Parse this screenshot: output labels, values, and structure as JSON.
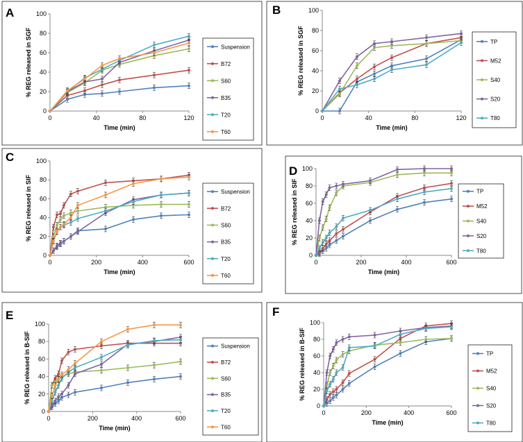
{
  "chart_data": [
    {
      "panel": "A",
      "type": "line",
      "ylabel": "% REG released in SGF",
      "xlabel": "Time (min)",
      "xlim": [
        0,
        120
      ],
      "xticks": [
        0,
        40,
        80,
        120
      ],
      "ylim": [
        0,
        100
      ],
      "yticks": [
        0,
        20,
        40,
        60,
        80,
        100
      ],
      "x": [
        0,
        15,
        30,
        45,
        60,
        90,
        120
      ],
      "series": [
        {
          "name": "Suspension",
          "color": "#4f81bd",
          "values": [
            0,
            12,
            17,
            18,
            20,
            24,
            26
          ]
        },
        {
          "name": "B72",
          "color": "#c0504d",
          "values": [
            0,
            16,
            21,
            27,
            32,
            37,
            42
          ]
        },
        {
          "name": "S60",
          "color": "#9bbb59",
          "values": [
            0,
            19,
            29,
            42,
            48,
            57,
            64
          ]
        },
        {
          "name": "B35",
          "color": "#8064a2",
          "values": [
            0,
            20,
            30,
            33,
            50,
            62,
            73
          ]
        },
        {
          "name": "T20",
          "color": "#4bacc6",
          "values": [
            0,
            20,
            34,
            43,
            52,
            68,
            77
          ]
        },
        {
          "name": "T60",
          "color": "#f79646",
          "values": [
            0,
            21,
            33,
            47,
            54,
            60,
            70
          ]
        }
      ]
    },
    {
      "panel": "B",
      "type": "line",
      "ylabel": "% REG released in SGF",
      "xlabel": "Time (min)",
      "xlim": [
        0,
        120
      ],
      "xticks": [
        0,
        40,
        80,
        120
      ],
      "ylim": [
        0,
        100
      ],
      "yticks": [
        0,
        20,
        40,
        60,
        80,
        100
      ],
      "series": [
        {
          "name": "TP",
          "color": "#4f81bd",
          "x": [
            0,
            15,
            30,
            45,
            60,
            90,
            120
          ],
          "values": [
            0,
            0,
            29,
            37,
            45,
            52,
            71
          ]
        },
        {
          "name": "M52",
          "color": "#c0504d",
          "x": [
            0,
            15,
            30,
            45,
            60,
            90,
            120
          ],
          "values": [
            0,
            18,
            32,
            44,
            53,
            67,
            73
          ]
        },
        {
          "name": "S40",
          "color": "#9bbb59",
          "x": [
            0,
            15,
            30,
            45,
            60,
            90,
            120
          ],
          "values": [
            0,
            17,
            45,
            63,
            65,
            67,
            70
          ]
        },
        {
          "name": "S20",
          "color": "#8064a2",
          "x": [
            0,
            15,
            30,
            45,
            60,
            90,
            120
          ],
          "values": [
            0,
            30,
            54,
            67,
            69,
            73,
            77
          ]
        },
        {
          "name": "T80",
          "color": "#4bacc6",
          "x": [
            0,
            15,
            30,
            45,
            60,
            90,
            120
          ],
          "values": [
            0,
            22,
            26,
            32,
            41,
            46,
            68
          ]
        }
      ]
    },
    {
      "panel": "C",
      "type": "line",
      "ylabel": "% REG released in SIF",
      "xlabel": "Time (min)",
      "xlim": [
        0,
        600
      ],
      "xticks": [
        0,
        200,
        400,
        600
      ],
      "ylim": [
        0,
        100
      ],
      "yticks": [
        0,
        20,
        40,
        60,
        80,
        100
      ],
      "x": [
        0,
        15,
        30,
        45,
        60,
        90,
        120,
        240,
        360,
        480,
        600
      ],
      "series": [
        {
          "name": "Suspension",
          "color": "#4f81bd",
          "values": [
            0,
            5,
            9,
            12,
            15,
            20,
            26,
            28,
            38,
            42,
            43
          ]
        },
        {
          "name": "B72",
          "color": "#c0504d",
          "values": [
            0,
            30,
            43,
            44,
            53,
            65,
            68,
            77,
            79,
            81,
            85
          ]
        },
        {
          "name": "S60",
          "color": "#9bbb59",
          "values": [
            0,
            20,
            32,
            38,
            42,
            45,
            47,
            51,
            53,
            54,
            54
          ]
        },
        {
          "name": "B35",
          "color": "#8064a2",
          "values": [
            0,
            5,
            10,
            13,
            15,
            20,
            25,
            45,
            59,
            64,
            66
          ]
        },
        {
          "name": "T20",
          "color": "#4bacc6",
          "values": [
            0,
            15,
            25,
            30,
            32,
            35,
            39,
            47,
            57,
            64,
            66
          ]
        },
        {
          "name": "T60",
          "color": "#f79646",
          "values": [
            0,
            15,
            25,
            30,
            33,
            40,
            53,
            64,
            76,
            81,
            83
          ]
        }
      ]
    },
    {
      "panel": "D",
      "type": "line",
      "ylabel": "% REG released in SIF",
      "xlabel": "Time (min)",
      "xlim": [
        0,
        600
      ],
      "xticks": [
        0,
        200,
        400,
        600
      ],
      "ylim": [
        0,
        100
      ],
      "yticks": [
        0,
        20,
        40,
        60,
        80,
        100
      ],
      "x": [
        0,
        15,
        30,
        45,
        60,
        90,
        120,
        240,
        360,
        480,
        600
      ],
      "series": [
        {
          "name": "TP",
          "color": "#4f81bd",
          "values": [
            0,
            2,
            5,
            8,
            12,
            17,
            22,
            40,
            53,
            61,
            65
          ]
        },
        {
          "name": "M52",
          "color": "#c0504d",
          "values": [
            0,
            3,
            8,
            13,
            17,
            25,
            30,
            50,
            68,
            78,
            83
          ]
        },
        {
          "name": "S40",
          "color": "#9bbb59",
          "values": [
            0,
            20,
            32,
            42,
            55,
            72,
            80,
            84,
            93,
            95,
            95
          ]
        },
        {
          "name": "S20",
          "color": "#8064a2",
          "values": [
            0,
            40,
            62,
            70,
            78,
            80,
            82,
            86,
            99,
            100,
            100
          ]
        },
        {
          "name": "T80",
          "color": "#4bacc6",
          "values": [
            0,
            8,
            15,
            20,
            26,
            33,
            43,
            52,
            65,
            73,
            77
          ]
        }
      ]
    },
    {
      "panel": "E",
      "type": "line",
      "ylabel": "% REG released in B-SIF",
      "xlabel": "Time (min)",
      "xlim": [
        0,
        600
      ],
      "xticks": [
        0,
        200,
        400,
        600
      ],
      "ylim": [
        0,
        100
      ],
      "yticks": [
        0,
        20,
        40,
        60,
        80,
        100
      ],
      "x": [
        0,
        15,
        30,
        45,
        60,
        90,
        120,
        240,
        360,
        480,
        600
      ],
      "series": [
        {
          "name": "Suspension",
          "color": "#4f81bd",
          "values": [
            0,
            5,
            9,
            12,
            16,
            19,
            22,
            27,
            33,
            37,
            40
          ]
        },
        {
          "name": "B72",
          "color": "#c0504d",
          "values": [
            0,
            30,
            38,
            43,
            58,
            68,
            71,
            75,
            78,
            78,
            78
          ]
        },
        {
          "name": "S60",
          "color": "#9bbb59",
          "values": [
            0,
            30,
            34,
            38,
            40,
            43,
            45,
            47,
            50,
            53,
            57
          ]
        },
        {
          "name": "B35",
          "color": "#8064a2",
          "values": [
            0,
            7,
            12,
            17,
            20,
            30,
            43,
            54,
            77,
            80,
            85
          ]
        },
        {
          "name": "T20",
          "color": "#4bacc6",
          "values": [
            0,
            12,
            22,
            30,
            38,
            45,
            50,
            62,
            76,
            81,
            82
          ]
        },
        {
          "name": "T60",
          "color": "#f79646",
          "values": [
            0,
            18,
            30,
            37,
            42,
            48,
            55,
            80,
            94,
            99,
            99
          ]
        }
      ]
    },
    {
      "panel": "F",
      "type": "line",
      "ylabel": "% REG released in B-SIF",
      "xlabel": "Time (min)",
      "xlim": [
        0,
        600
      ],
      "xticks": [
        0,
        200,
        400,
        600
      ],
      "ylim": [
        0,
        100
      ],
      "yticks": [
        0,
        20,
        40,
        60,
        80,
        100
      ],
      "x": [
        0,
        15,
        30,
        45,
        60,
        90,
        120,
        240,
        360,
        480,
        600
      ],
      "series": [
        {
          "name": "TP",
          "color": "#4f81bd",
          "values": [
            0,
            3,
            6,
            10,
            13,
            20,
            27,
            47,
            63,
            77,
            81
          ]
        },
        {
          "name": "M52",
          "color": "#c0504d",
          "values": [
            0,
            8,
            14,
            17,
            20,
            28,
            39,
            56,
            81,
            96,
            99
          ]
        },
        {
          "name": "S40",
          "color": "#9bbb59",
          "values": [
            0,
            25,
            40,
            48,
            55,
            62,
            66,
            73,
            76,
            80,
            81
          ]
        },
        {
          "name": "S20",
          "color": "#8064a2",
          "values": [
            0,
            40,
            60,
            68,
            76,
            80,
            83,
            85,
            90,
            94,
            96
          ]
        },
        {
          "name": "T80",
          "color": "#4bacc6",
          "values": [
            0,
            18,
            26,
            32,
            40,
            46,
            70,
            72,
            86,
            93,
            95
          ]
        }
      ]
    }
  ]
}
